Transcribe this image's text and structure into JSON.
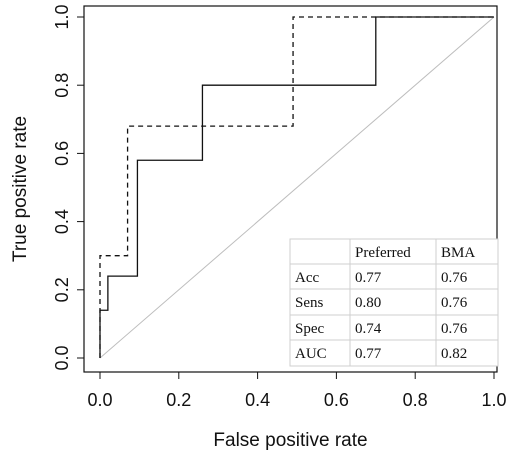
{
  "chart_data": {
    "type": "line",
    "title": "",
    "xlabel": "False positive rate",
    "ylabel": "True positive rate",
    "xlim": [
      0,
      1
    ],
    "ylim": [
      0,
      1
    ],
    "xticks": [
      "0.0",
      "0.2",
      "0.4",
      "0.6",
      "0.8",
      "1.0"
    ],
    "yticks": [
      "0.0",
      "0.2",
      "0.4",
      "0.6",
      "0.8",
      "1.0"
    ],
    "grid": false,
    "reference_line": {
      "x": [
        0,
        1
      ],
      "y": [
        0,
        1
      ],
      "color": "#bdbdbd"
    },
    "series": [
      {
        "style": "solid",
        "color": "#111111",
        "x": [
          0,
          0,
          0.02,
          0.02,
          0.095,
          0.095,
          0.26,
          0.26,
          0.7,
          0.7,
          1.0
        ],
        "y": [
          0,
          0.14,
          0.14,
          0.24,
          0.24,
          0.58,
          0.58,
          0.8,
          0.8,
          1.0,
          1.0
        ]
      },
      {
        "style": "dashed",
        "color": "#111111",
        "x": [
          0,
          0,
          0.07,
          0.07,
          0.49,
          0.49,
          1.0
        ],
        "y": [
          0,
          0.3,
          0.3,
          0.68,
          0.68,
          1.0,
          1.0
        ]
      }
    ],
    "legend_table": {
      "placement": "bottom-right",
      "columns": [
        "",
        "Preferred",
        "BMA"
      ],
      "rows": [
        [
          "Acc",
          "0.77",
          "0.76"
        ],
        [
          "Sens",
          "0.80",
          "0.76"
        ],
        [
          "Spec",
          "0.74",
          "0.76"
        ],
        [
          "AUC",
          "0.77",
          "0.82"
        ]
      ]
    }
  }
}
